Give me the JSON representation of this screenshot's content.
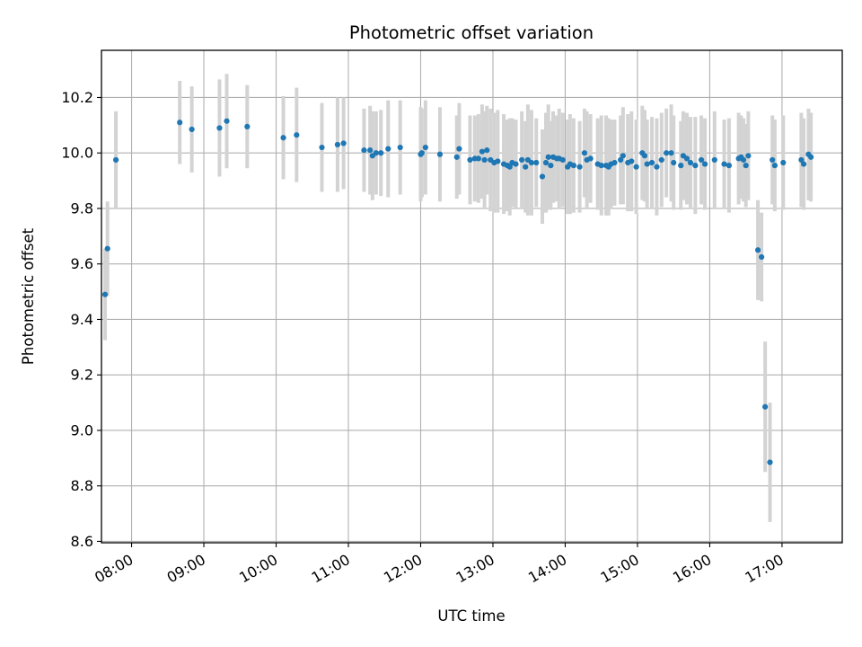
{
  "chart_data": {
    "type": "scatter",
    "title": "Photometric offset variation",
    "xlabel": "UTC time",
    "ylabel": "Photometric offset",
    "x_tick_labels": [
      "08:00",
      "09:00",
      "10:00",
      "11:00",
      "12:00",
      "13:00",
      "14:00",
      "15:00",
      "16:00",
      "17:00"
    ],
    "y_tick_labels": [
      "8.6",
      "8.8",
      "9.0",
      "9.2",
      "9.4",
      "9.6",
      "9.8",
      "10.0",
      "10.2"
    ],
    "xlim": [
      "07:35",
      "17:50"
    ],
    "ylim": [
      8.595,
      10.37
    ],
    "grid": true,
    "point_color": "#1f77b4",
    "errorbar_color": "#d3d3d3",
    "series": [
      {
        "x": [
          "07:38",
          "07:40",
          "07:47",
          "08:40",
          "08:50",
          "09:13",
          "09:19",
          "09:36",
          "10:06",
          "10:17",
          "10:38",
          "10:51",
          "10:56",
          "11:13",
          "11:18",
          "11:20",
          "11:23",
          "11:27",
          "11:33",
          "11:43",
          "12:00",
          "12:01",
          "12:04",
          "12:16",
          "12:30",
          "12:32",
          "12:41",
          "12:45",
          "12:48",
          "12:51",
          "12:53",
          "12:55",
          "12:58",
          "13:01",
          "13:04",
          "13:09",
          "13:12",
          "13:14",
          "13:16",
          "13:19",
          "13:24",
          "13:27",
          "13:29",
          "13:32",
          "13:36",
          "13:41",
          "13:44",
          "13:46",
          "13:48",
          "13:50",
          "13:53",
          "13:55",
          "13:58",
          "14:02",
          "14:04",
          "14:07",
          "14:12",
          "14:16",
          "14:18",
          "14:21",
          "14:27",
          "14:30",
          "14:34",
          "14:36",
          "14:38",
          "14:41",
          "14:46",
          "14:48",
          "14:52",
          "14:55",
          "14:59",
          "15:04",
          "15:06",
          "15:08",
          "15:12",
          "15:16",
          "15:20",
          "15:24",
          "15:28",
          "15:30",
          "15:36",
          "15:38",
          "15:41",
          "15:44",
          "15:48",
          "15:53",
          "15:56",
          "16:04",
          "16:12",
          "16:16",
          "16:24",
          "16:26",
          "16:28",
          "16:30",
          "16:32",
          "16:40",
          "16:43",
          "16:46",
          "16:50",
          "16:52",
          "16:54",
          "17:01",
          "17:16",
          "17:18",
          "17:22",
          "17:24"
        ],
        "y": [
          9.49,
          9.655,
          9.975,
          10.11,
          10.085,
          10.09,
          10.115,
          10.095,
          10.055,
          10.065,
          10.02,
          10.03,
          10.035,
          10.01,
          10.01,
          9.99,
          10.0,
          10.0,
          10.015,
          10.02,
          9.995,
          10.0,
          10.02,
          9.995,
          9.985,
          10.015,
          9.975,
          9.98,
          9.98,
          10.005,
          9.975,
          10.01,
          9.975,
          9.965,
          9.97,
          9.96,
          9.955,
          9.95,
          9.965,
          9.96,
          9.975,
          9.95,
          9.975,
          9.965,
          9.965,
          9.915,
          9.965,
          9.985,
          9.955,
          9.985,
          9.98,
          9.98,
          9.975,
          9.95,
          9.96,
          9.955,
          9.95,
          10.0,
          9.975,
          9.98,
          9.96,
          9.955,
          9.955,
          9.95,
          9.96,
          9.965,
          9.975,
          9.99,
          9.965,
          9.97,
          9.95,
          10.0,
          9.99,
          9.96,
          9.965,
          9.95,
          9.975,
          10.0,
          10.0,
          9.965,
          9.955,
          9.99,
          9.98,
          9.965,
          9.955,
          9.975,
          9.96,
          9.975,
          9.96,
          9.955,
          9.98,
          9.985,
          9.975,
          9.955,
          9.99,
          9.65,
          9.625,
          9.085,
          8.885,
          9.975,
          9.955,
          9.965,
          9.975,
          9.96,
          9.995,
          9.985
        ],
        "err": [
          0.165,
          0.17,
          0.175,
          0.15,
          0.155,
          0.175,
          0.17,
          0.15,
          0.15,
          0.17,
          0.16,
          0.17,
          0.165,
          0.15,
          0.16,
          0.16,
          0.15,
          0.155,
          0.175,
          0.17,
          0.17,
          0.16,
          0.17,
          0.17,
          0.15,
          0.165,
          0.16,
          0.155,
          0.16,
          0.17,
          0.175,
          0.16,
          0.185,
          0.18,
          0.185,
          0.18,
          0.165,
          0.175,
          0.16,
          0.16,
          0.175,
          0.165,
          0.2,
          0.19,
          0.16,
          0.17,
          0.18,
          0.19,
          0.16,
          0.165,
          0.155,
          0.18,
          0.17,
          0.17,
          0.18,
          0.17,
          0.165,
          0.16,
          0.175,
          0.16,
          0.165,
          0.18,
          0.18,
          0.175,
          0.16,
          0.155,
          0.16,
          0.175,
          0.175,
          0.18,
          0.17,
          0.17,
          0.165,
          0.16,
          0.165,
          0.175,
          0.17,
          0.16,
          0.175,
          0.17,
          0.16,
          0.16,
          0.165,
          0.165,
          0.175,
          0.16,
          0.165,
          0.175,
          0.16,
          0.17,
          0.165,
          0.15,
          0.15,
          0.15,
          0.16,
          0.18,
          0.16,
          0.235,
          0.215,
          0.16,
          0.165,
          0.17,
          0.17,
          0.165,
          0.165,
          0.16
        ]
      }
    ]
  }
}
